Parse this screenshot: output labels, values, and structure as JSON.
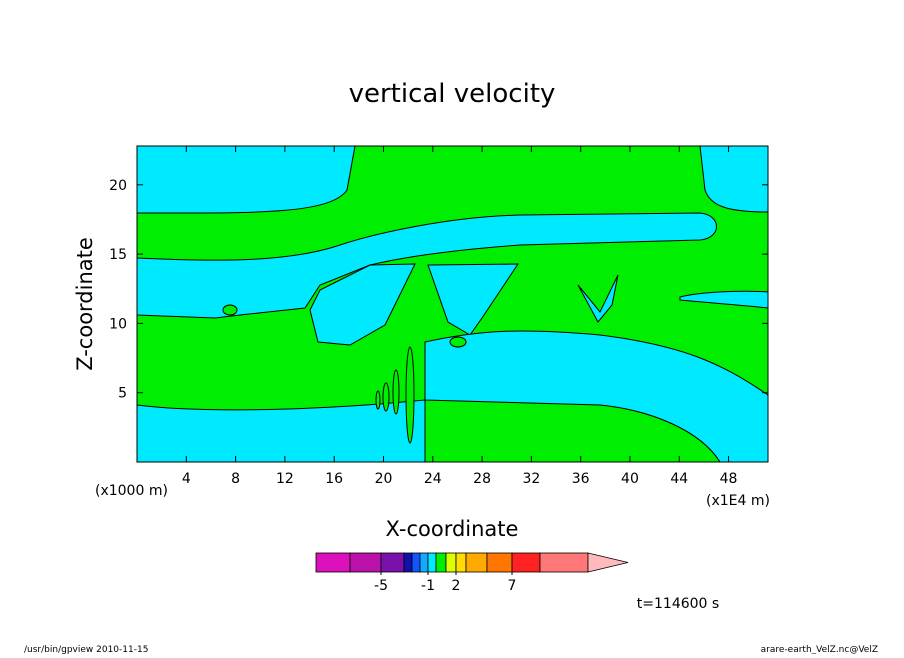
{
  "chart_data": {
    "type": "contour",
    "title": "vertical velocity",
    "xlabel": "X-coordinate",
    "ylabel": "Z-coordinate",
    "xunit": "(x1000 m)",
    "xunit_right": "(x1E4 m)",
    "xlim": [
      0,
      51.2
    ],
    "xticks": [
      4,
      8,
      12,
      16,
      20,
      24,
      28,
      32,
      36,
      40,
      44,
      48
    ],
    "ylim": [
      0,
      22.8
    ],
    "yticks": [
      5,
      10,
      15,
      20
    ],
    "fill_colors": {
      "low": "#00eaff",
      "high": "#00ee00"
    },
    "colorbar": {
      "colors": [
        "#dd11bb",
        "#bb11aa",
        "#7711aa",
        "#1111aa",
        "#1155ff",
        "#11aaff",
        "#00eaff",
        "#00ee00",
        "#ddff00",
        "#ffdd00",
        "#ffaa00",
        "#ff7700",
        "#ff2222",
        "#ff7777"
      ],
      "extend_color": "#ffbbbb",
      "ticks": [
        -5,
        -1,
        2,
        7
      ]
    },
    "annotations": [
      "t=114600 s",
      "/usr/bin/gpview  2010-11-15",
      "arare-earth_VelZ.nc@VelZ"
    ]
  }
}
